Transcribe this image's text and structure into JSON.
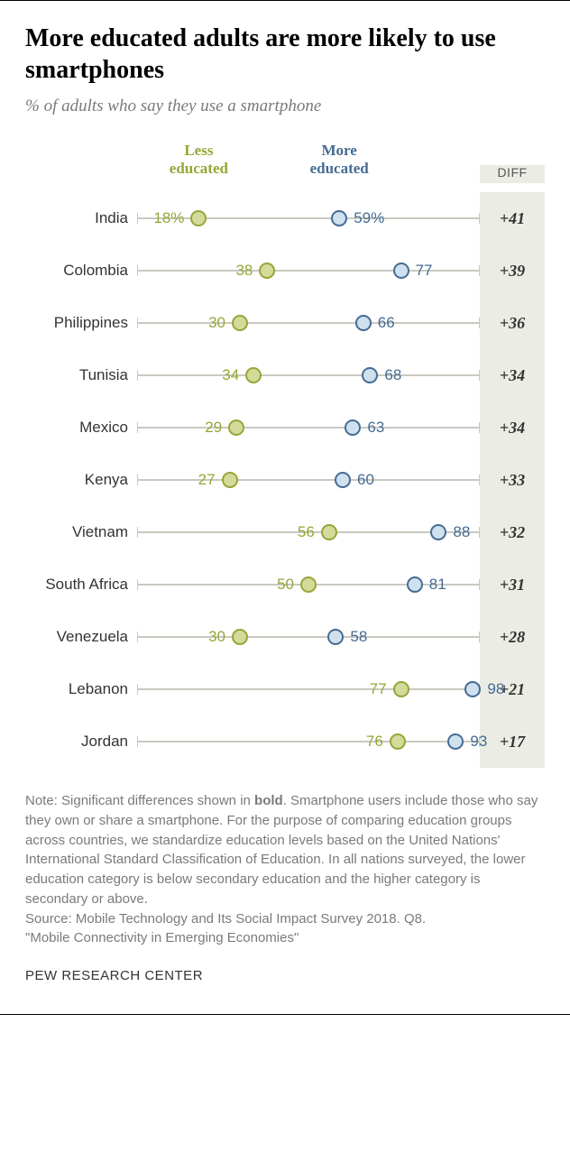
{
  "title": "More educated adults are more likely to use smartphones",
  "subtitle": "% of adults who say they use a smartphone",
  "legend": {
    "less": "Less\neducated",
    "more": "More\neducated",
    "diff": "DIFF"
  },
  "chart": {
    "type": "dot-plot",
    "xmin": 0,
    "xmax": 100,
    "colors": {
      "less_fill": "#d3da9a",
      "less_stroke": "#97a637",
      "more_fill": "#cfe0ef",
      "more_stroke": "#456c93",
      "track": "#c9c9c1",
      "diff_bg": "#ebece4"
    },
    "rows": [
      {
        "country": "India",
        "less": 18,
        "more": 59,
        "less_label": "18%",
        "more_label": "59%",
        "diff": "+41"
      },
      {
        "country": "Colombia",
        "less": 38,
        "more": 77,
        "less_label": "38",
        "more_label": "77",
        "diff": "+39"
      },
      {
        "country": "Philippines",
        "less": 30,
        "more": 66,
        "less_label": "30",
        "more_label": "66",
        "diff": "+36"
      },
      {
        "country": "Tunisia",
        "less": 34,
        "more": 68,
        "less_label": "34",
        "more_label": "68",
        "diff": "+34"
      },
      {
        "country": "Mexico",
        "less": 29,
        "more": 63,
        "less_label": "29",
        "more_label": "63",
        "diff": "+34"
      },
      {
        "country": "Kenya",
        "less": 27,
        "more": 60,
        "less_label": "27",
        "more_label": "60",
        "diff": "+33"
      },
      {
        "country": "Vietnam",
        "less": 56,
        "more": 88,
        "less_label": "56",
        "more_label": "88",
        "diff": "+32"
      },
      {
        "country": "South Africa",
        "less": 50,
        "more": 81,
        "less_label": "50",
        "more_label": "81",
        "diff": "+31"
      },
      {
        "country": "Venezuela",
        "less": 30,
        "more": 58,
        "less_label": "30",
        "more_label": "58",
        "diff": "+28"
      },
      {
        "country": "Lebanon",
        "less": 77,
        "more": 98,
        "less_label": "77",
        "more_label": "98",
        "diff": "+21"
      },
      {
        "country": "Jordan",
        "less": 76,
        "more": 93,
        "less_label": "76",
        "more_label": "93",
        "diff": "+17"
      }
    ]
  },
  "note_parts": {
    "p1": "Note: Significant differences shown in ",
    "bold": "bold",
    "p2": ". Smartphone users include those who say they own or share a smartphone. For the purpose of comparing education groups across countries, we standardize education levels based on the United Nations' International Standard Classification of Education. In all nations surveyed, the lower education category is below secondary education and the higher category is secondary or above.",
    "source": "Source: Mobile Technology and Its Social Impact Survey 2018. Q8.",
    "report": "\"Mobile Connectivity in Emerging Economies\""
  },
  "footer": "PEW RESEARCH CENTER"
}
